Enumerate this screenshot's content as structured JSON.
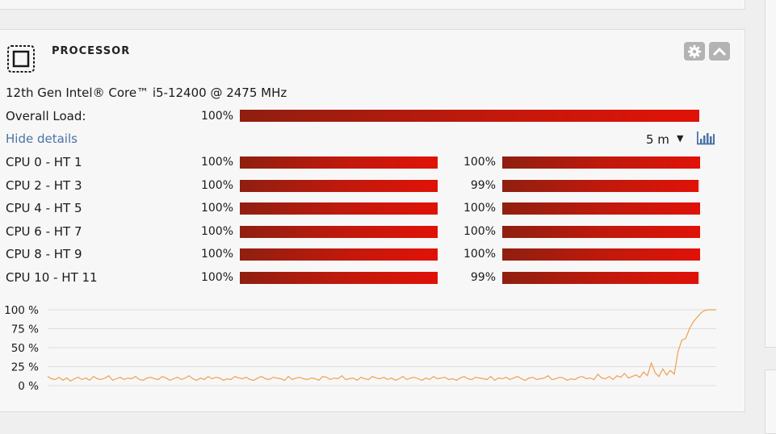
{
  "panel": {
    "title": "PROCESSOR",
    "model": "12th Gen Intel® Core™ i5-12400 @ 2475 MHz",
    "overall_label": "Overall Load:",
    "overall_pct_text": "100%",
    "overall_load": 100,
    "hide_details": "Hide details",
    "time_range": "5 m",
    "accent": "#d01a0c",
    "link_color": "#4a73a5",
    "icons": {
      "cpu": "cpu-chip-icon",
      "settings": "gear-icon",
      "collapse": "chevron-up-icon",
      "dropdown": "triangle-down-icon",
      "chart": "bar-chart-icon"
    }
  },
  "cores": [
    {
      "label": "CPU 0 - HT 1",
      "a_text": "100%",
      "a": 100,
      "b_text": "100%",
      "b": 100
    },
    {
      "label": "CPU 2 - HT 3",
      "a_text": "100%",
      "a": 100,
      "b_text": "99%",
      "b": 99
    },
    {
      "label": "CPU 4 - HT 5",
      "a_text": "100%",
      "a": 100,
      "b_text": "100%",
      "b": 100
    },
    {
      "label": "CPU 6 - HT 7",
      "a_text": "100%",
      "a": 100,
      "b_text": "100%",
      "b": 100
    },
    {
      "label": "CPU 8 - HT 9",
      "a_text": "100%",
      "a": 100,
      "b_text": "100%",
      "b": 100
    },
    {
      "label": "CPU 10 - HT 11",
      "a_text": "100%",
      "a": 100,
      "b_text": "99%",
      "b": 99
    }
  ],
  "chart_data": {
    "type": "line",
    "ylim": [
      0,
      100
    ],
    "yticks": [
      "100 %",
      "75 %",
      "50 %",
      "25 %",
      "0 %"
    ],
    "ytick_values": [
      100,
      75,
      50,
      25,
      0
    ],
    "grid": true,
    "line_color": "#f0a050",
    "series": [
      {
        "values": [
          12,
          9,
          8,
          11,
          7,
          10,
          6,
          9,
          11,
          8,
          10,
          7,
          12,
          9,
          8,
          10,
          13,
          7,
          9,
          11,
          8,
          10,
          9,
          12,
          8,
          7,
          10,
          11,
          9,
          8,
          12,
          10,
          7,
          9,
          11,
          8,
          10,
          13,
          9,
          7,
          10,
          8,
          12,
          9,
          11,
          10,
          7,
          9,
          8,
          12,
          10,
          9,
          11,
          8,
          7,
          10,
          12,
          9,
          8,
          11,
          10,
          9,
          7,
          12,
          8,
          10,
          11,
          9,
          8,
          10,
          9,
          7,
          12,
          11,
          8,
          10,
          9,
          13,
          8,
          9,
          10,
          7,
          11,
          9,
          8,
          12,
          10,
          9,
          11,
          8,
          10,
          7,
          9,
          12,
          8,
          10,
          11,
          9,
          7,
          10,
          8,
          12,
          9,
          10,
          11,
          8,
          9,
          7,
          10,
          12,
          9,
          8,
          11,
          10,
          9,
          8,
          12,
          7,
          10,
          9,
          11,
          8,
          10,
          12,
          9,
          7,
          10,
          11,
          8,
          9,
          10,
          13,
          8,
          9,
          11,
          10,
          7,
          9,
          8,
          11,
          12,
          9,
          10,
          8,
          15,
          10,
          9,
          12,
          8,
          13,
          11,
          16,
          10,
          12,
          14,
          11,
          18,
          13,
          30,
          17,
          12,
          22,
          14,
          20,
          15,
          45,
          60,
          62,
          75,
          84,
          90,
          96,
          99,
          100,
          100,
          100
        ]
      }
    ]
  }
}
